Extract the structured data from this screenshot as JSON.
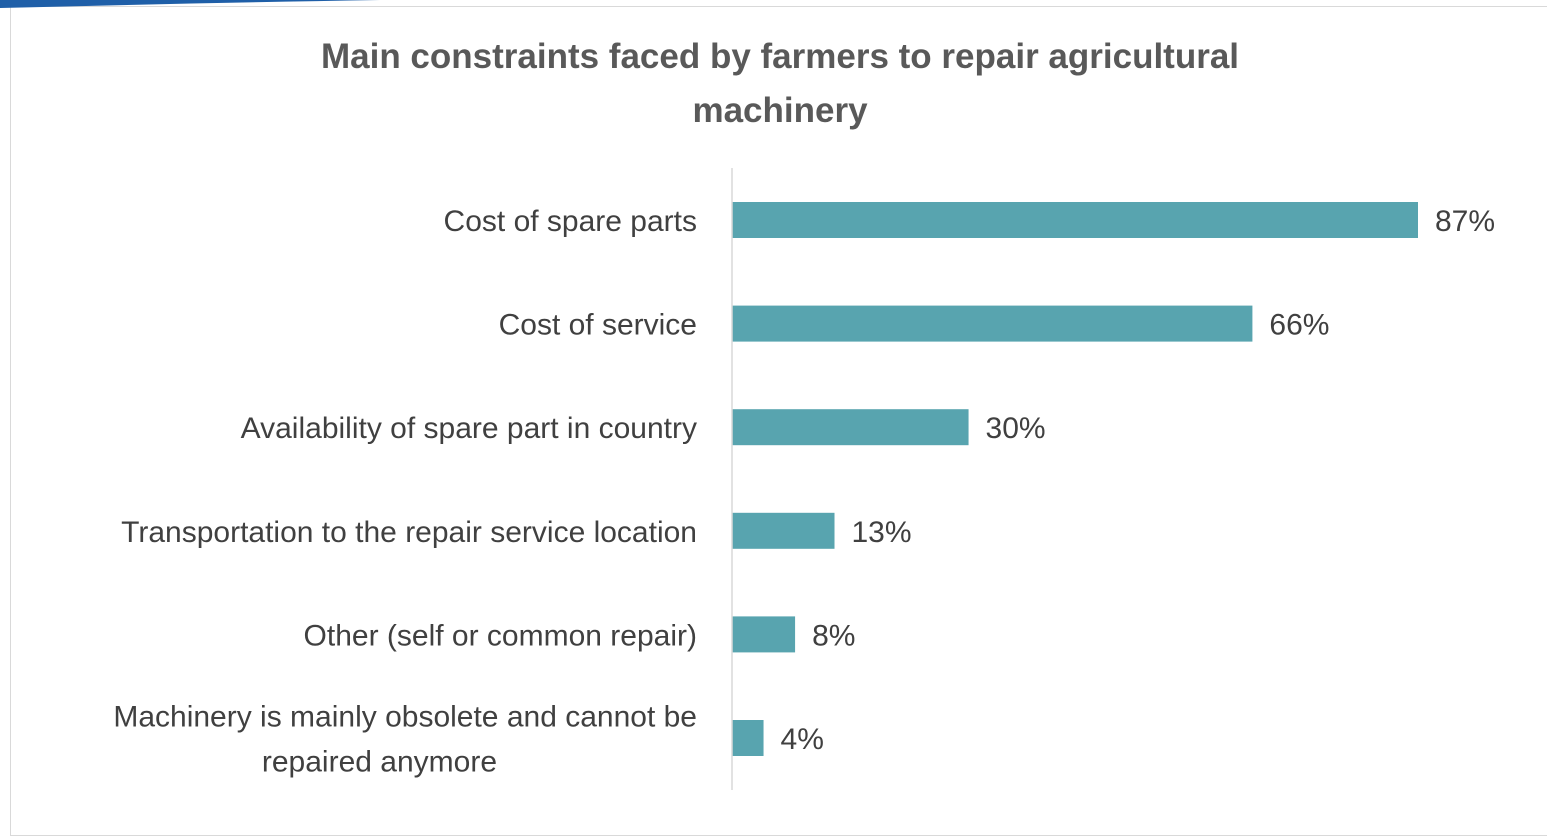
{
  "chart_data": {
    "type": "bar",
    "orientation": "horizontal",
    "title": "Main constraints faced by farmers to repair agricultural\nmachinery",
    "xlabel": "",
    "ylabel": "",
    "categories": [
      "Cost of spare parts",
      "Cost of service",
      "Availability of spare part in country",
      "Transportation to the repair service location",
      "Other (self or common repair)",
      "Machinery is mainly obsolete and cannot be repaired anymore"
    ],
    "category_lines": [
      [
        "Cost of spare parts"
      ],
      [
        "Cost of service"
      ],
      [
        "Availability of spare part in country"
      ],
      [
        "Transportation to the repair service location"
      ],
      [
        "Other (self or common repair)"
      ],
      [
        "Machinery is mainly obsolete and cannot be",
        "repaired anymore"
      ]
    ],
    "values": [
      87,
      66,
      30,
      13,
      8,
      4
    ],
    "value_labels": [
      "87%",
      "66%",
      "30%",
      "13%",
      "8%",
      "4%"
    ],
    "unit": "%",
    "xlim": [
      0,
      100
    ],
    "grid": false,
    "legend": "none",
    "bar_color": "#58A4AF",
    "axis_color": "#d9d9d9"
  }
}
